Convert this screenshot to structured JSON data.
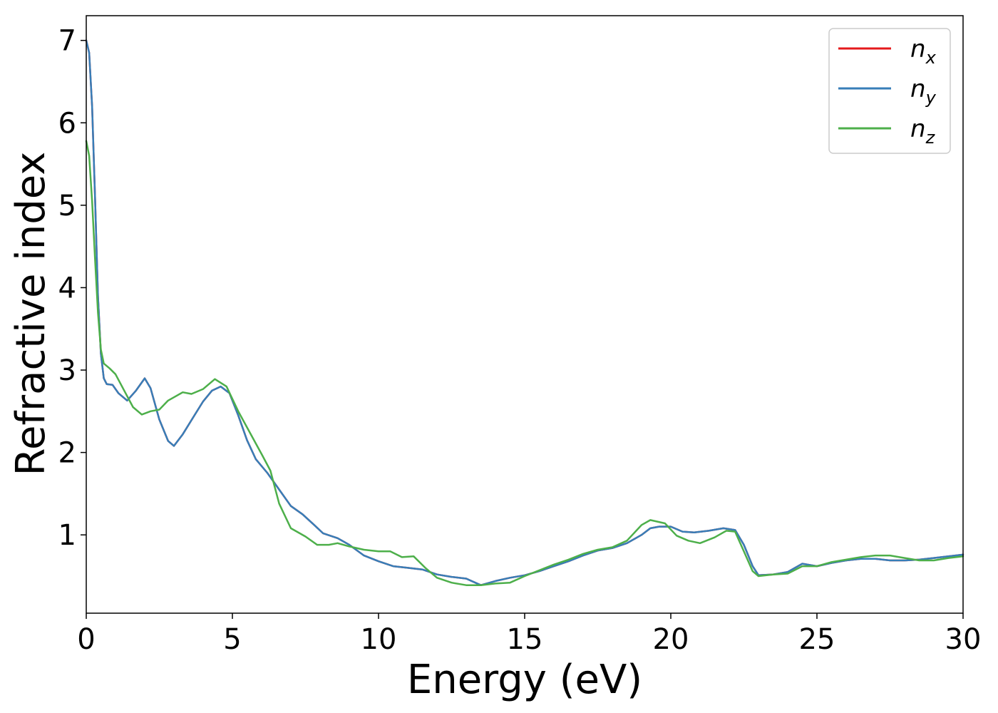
{
  "chart_data": {
    "type": "line",
    "title": "",
    "xlabel": "Energy (eV)",
    "ylabel": "Refractive index",
    "xlim": [
      0,
      30
    ],
    "ylim": [
      0.05,
      7.3
    ],
    "xticks": [
      0,
      5,
      10,
      15,
      20,
      25,
      30
    ],
    "yticks": [
      1,
      2,
      3,
      4,
      5,
      6,
      7
    ],
    "grid": false,
    "legend_position": "top-right",
    "series": [
      {
        "name": "n",
        "subscript": "x",
        "color": "#e41a1c",
        "points": [
          [
            0,
            7.0
          ],
          [
            0.1,
            6.85
          ],
          [
            0.2,
            6.2
          ],
          [
            0.3,
            5.1
          ],
          [
            0.4,
            3.9
          ],
          [
            0.5,
            3.2
          ],
          [
            0.6,
            2.9
          ],
          [
            0.7,
            2.83
          ],
          [
            0.9,
            2.82
          ],
          [
            1.1,
            2.72
          ],
          [
            1.4,
            2.63
          ],
          [
            1.7,
            2.75
          ],
          [
            2.0,
            2.9
          ],
          [
            2.2,
            2.78
          ],
          [
            2.5,
            2.4
          ],
          [
            2.8,
            2.14
          ],
          [
            3.0,
            2.08
          ],
          [
            3.3,
            2.22
          ],
          [
            3.7,
            2.45
          ],
          [
            4.0,
            2.62
          ],
          [
            4.3,
            2.75
          ],
          [
            4.6,
            2.8
          ],
          [
            4.9,
            2.72
          ],
          [
            5.2,
            2.45
          ],
          [
            5.5,
            2.15
          ],
          [
            5.8,
            1.92
          ],
          [
            6.2,
            1.75
          ],
          [
            6.6,
            1.55
          ],
          [
            7.0,
            1.35
          ],
          [
            7.4,
            1.25
          ],
          [
            7.8,
            1.12
          ],
          [
            8.1,
            1.02
          ],
          [
            8.6,
            0.96
          ],
          [
            9.0,
            0.88
          ],
          [
            9.5,
            0.75
          ],
          [
            10.0,
            0.68
          ],
          [
            10.5,
            0.62
          ],
          [
            11.0,
            0.6
          ],
          [
            11.5,
            0.58
          ],
          [
            12.0,
            0.52
          ],
          [
            12.5,
            0.49
          ],
          [
            13.0,
            0.47
          ],
          [
            13.5,
            0.39
          ],
          [
            14.0,
            0.44
          ],
          [
            14.5,
            0.48
          ],
          [
            15.0,
            0.51
          ],
          [
            15.5,
            0.56
          ],
          [
            16.0,
            0.62
          ],
          [
            16.5,
            0.68
          ],
          [
            17.0,
            0.75
          ],
          [
            17.5,
            0.81
          ],
          [
            18.0,
            0.84
          ],
          [
            18.5,
            0.9
          ],
          [
            19.0,
            1.0
          ],
          [
            19.3,
            1.08
          ],
          [
            19.6,
            1.1
          ],
          [
            20.0,
            1.1
          ],
          [
            20.4,
            1.04
          ],
          [
            20.8,
            1.03
          ],
          [
            21.3,
            1.05
          ],
          [
            21.8,
            1.08
          ],
          [
            22.2,
            1.06
          ],
          [
            22.5,
            0.88
          ],
          [
            22.8,
            0.62
          ],
          [
            23.0,
            0.51
          ],
          [
            23.5,
            0.52
          ],
          [
            24.0,
            0.55
          ],
          [
            24.5,
            0.65
          ],
          [
            25.0,
            0.62
          ],
          [
            25.5,
            0.66
          ],
          [
            26.0,
            0.69
          ],
          [
            26.5,
            0.71
          ],
          [
            27.0,
            0.71
          ],
          [
            27.5,
            0.69
          ],
          [
            28.0,
            0.69
          ],
          [
            28.5,
            0.7
          ],
          [
            29.0,
            0.72
          ],
          [
            29.5,
            0.74
          ],
          [
            30.0,
            0.76
          ]
        ]
      },
      {
        "name": "n",
        "subscript": "y",
        "color": "#377eb8",
        "points": [
          [
            0,
            7.0
          ],
          [
            0.1,
            6.85
          ],
          [
            0.2,
            6.2
          ],
          [
            0.3,
            5.1
          ],
          [
            0.4,
            3.9
          ],
          [
            0.5,
            3.2
          ],
          [
            0.6,
            2.9
          ],
          [
            0.7,
            2.83
          ],
          [
            0.9,
            2.82
          ],
          [
            1.1,
            2.72
          ],
          [
            1.4,
            2.63
          ],
          [
            1.7,
            2.75
          ],
          [
            2.0,
            2.9
          ],
          [
            2.2,
            2.78
          ],
          [
            2.5,
            2.4
          ],
          [
            2.8,
            2.14
          ],
          [
            3.0,
            2.08
          ],
          [
            3.3,
            2.22
          ],
          [
            3.7,
            2.45
          ],
          [
            4.0,
            2.62
          ],
          [
            4.3,
            2.75
          ],
          [
            4.6,
            2.8
          ],
          [
            4.9,
            2.72
          ],
          [
            5.2,
            2.45
          ],
          [
            5.5,
            2.15
          ],
          [
            5.8,
            1.92
          ],
          [
            6.2,
            1.75
          ],
          [
            6.6,
            1.55
          ],
          [
            7.0,
            1.35
          ],
          [
            7.4,
            1.25
          ],
          [
            7.8,
            1.12
          ],
          [
            8.1,
            1.02
          ],
          [
            8.6,
            0.96
          ],
          [
            9.0,
            0.88
          ],
          [
            9.5,
            0.75
          ],
          [
            10.0,
            0.68
          ],
          [
            10.5,
            0.62
          ],
          [
            11.0,
            0.6
          ],
          [
            11.5,
            0.58
          ],
          [
            12.0,
            0.52
          ],
          [
            12.5,
            0.49
          ],
          [
            13.0,
            0.47
          ],
          [
            13.5,
            0.39
          ],
          [
            14.0,
            0.44
          ],
          [
            14.5,
            0.48
          ],
          [
            15.0,
            0.51
          ],
          [
            15.5,
            0.56
          ],
          [
            16.0,
            0.62
          ],
          [
            16.5,
            0.68
          ],
          [
            17.0,
            0.75
          ],
          [
            17.5,
            0.81
          ],
          [
            18.0,
            0.84
          ],
          [
            18.5,
            0.9
          ],
          [
            19.0,
            1.0
          ],
          [
            19.3,
            1.08
          ],
          [
            19.6,
            1.1
          ],
          [
            20.0,
            1.1
          ],
          [
            20.4,
            1.04
          ],
          [
            20.8,
            1.03
          ],
          [
            21.3,
            1.05
          ],
          [
            21.8,
            1.08
          ],
          [
            22.2,
            1.06
          ],
          [
            22.5,
            0.88
          ],
          [
            22.8,
            0.62
          ],
          [
            23.0,
            0.51
          ],
          [
            23.5,
            0.52
          ],
          [
            24.0,
            0.55
          ],
          [
            24.5,
            0.65
          ],
          [
            25.0,
            0.62
          ],
          [
            25.5,
            0.66
          ],
          [
            26.0,
            0.69
          ],
          [
            26.5,
            0.71
          ],
          [
            27.0,
            0.71
          ],
          [
            27.5,
            0.69
          ],
          [
            28.0,
            0.69
          ],
          [
            28.5,
            0.7
          ],
          [
            29.0,
            0.72
          ],
          [
            29.5,
            0.74
          ],
          [
            30.0,
            0.76
          ]
        ]
      },
      {
        "name": "n",
        "subscript": "z",
        "color": "#4daf4a",
        "points": [
          [
            0,
            5.78
          ],
          [
            0.1,
            5.6
          ],
          [
            0.2,
            5.05
          ],
          [
            0.3,
            4.35
          ],
          [
            0.4,
            3.7
          ],
          [
            0.5,
            3.25
          ],
          [
            0.6,
            3.08
          ],
          [
            0.8,
            3.02
          ],
          [
            1.0,
            2.95
          ],
          [
            1.3,
            2.75
          ],
          [
            1.6,
            2.55
          ],
          [
            1.9,
            2.46
          ],
          [
            2.2,
            2.5
          ],
          [
            2.5,
            2.52
          ],
          [
            2.8,
            2.63
          ],
          [
            3.0,
            2.67
          ],
          [
            3.3,
            2.73
          ],
          [
            3.6,
            2.71
          ],
          [
            4.0,
            2.77
          ],
          [
            4.4,
            2.89
          ],
          [
            4.8,
            2.8
          ],
          [
            5.2,
            2.5
          ],
          [
            5.6,
            2.24
          ],
          [
            6.0,
            1.98
          ],
          [
            6.3,
            1.78
          ],
          [
            6.6,
            1.38
          ],
          [
            7.0,
            1.08
          ],
          [
            7.5,
            0.98
          ],
          [
            7.9,
            0.88
          ],
          [
            8.3,
            0.88
          ],
          [
            8.6,
            0.9
          ],
          [
            9.0,
            0.86
          ],
          [
            9.5,
            0.82
          ],
          [
            10.0,
            0.8
          ],
          [
            10.4,
            0.8
          ],
          [
            10.8,
            0.73
          ],
          [
            11.2,
            0.74
          ],
          [
            11.6,
            0.6
          ],
          [
            12.0,
            0.48
          ],
          [
            12.5,
            0.42
          ],
          [
            13.0,
            0.39
          ],
          [
            13.5,
            0.39
          ],
          [
            14.0,
            0.41
          ],
          [
            14.5,
            0.42
          ],
          [
            15.0,
            0.5
          ],
          [
            15.5,
            0.57
          ],
          [
            16.0,
            0.64
          ],
          [
            16.5,
            0.7
          ],
          [
            17.0,
            0.77
          ],
          [
            17.5,
            0.82
          ],
          [
            18.0,
            0.85
          ],
          [
            18.5,
            0.93
          ],
          [
            19.0,
            1.12
          ],
          [
            19.3,
            1.18
          ],
          [
            19.8,
            1.14
          ],
          [
            20.2,
            0.99
          ],
          [
            20.6,
            0.93
          ],
          [
            21.0,
            0.9
          ],
          [
            21.5,
            0.97
          ],
          [
            21.9,
            1.05
          ],
          [
            22.2,
            1.04
          ],
          [
            22.5,
            0.8
          ],
          [
            22.8,
            0.56
          ],
          [
            23.0,
            0.5
          ],
          [
            23.5,
            0.52
          ],
          [
            24.0,
            0.53
          ],
          [
            24.5,
            0.62
          ],
          [
            25.0,
            0.62
          ],
          [
            25.5,
            0.67
          ],
          [
            26.0,
            0.7
          ],
          [
            26.5,
            0.73
          ],
          [
            27.0,
            0.75
          ],
          [
            27.5,
            0.75
          ],
          [
            28.0,
            0.72
          ],
          [
            28.5,
            0.69
          ],
          [
            29.0,
            0.69
          ],
          [
            29.5,
            0.72
          ],
          [
            30.0,
            0.74
          ]
        ]
      }
    ]
  }
}
